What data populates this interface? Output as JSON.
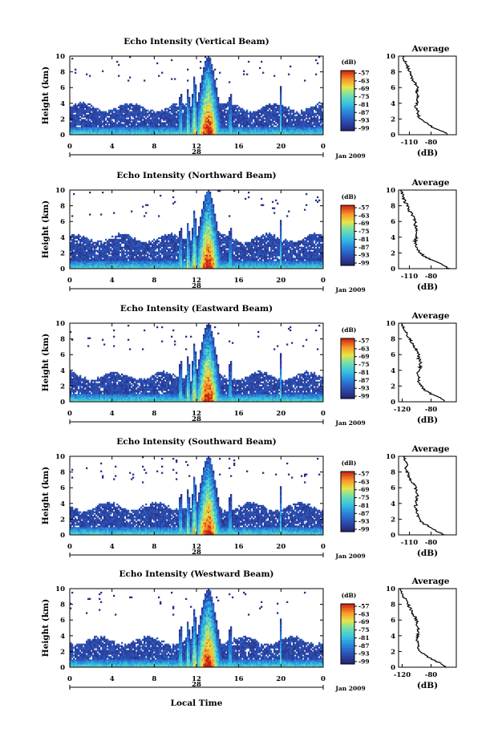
{
  "figure": {
    "colorbar_unit": "(dB)",
    "average_title": "Average",
    "average_xlabel": "(dB)",
    "ylabel": "Height (km)",
    "xlabel": "Local Time",
    "date_label": "Jan 2009",
    "day_label": "28"
  },
  "chart_data": [
    {
      "type": "heatmap",
      "title": "Echo Intensity (Vertical Beam)",
      "ylabel": "Height (km)",
      "xlim": [
        0,
        24
      ],
      "ylim": [
        0,
        10
      ],
      "xticks": [
        "0",
        "4",
        "8",
        "12",
        "16",
        "20",
        "0"
      ],
      "yticks": [
        "0",
        "2",
        "4",
        "6",
        "8",
        "10"
      ],
      "colorbar": {
        "unit": "(dB)",
        "ticks": [
          "-57",
          "-63",
          "-69",
          "-75",
          "-81",
          "-87",
          "-93",
          "-99"
        ]
      },
      "cloud_top_km": 3.5,
      "average": {
        "title": "Average",
        "xlabel": "(dB)",
        "xlim": [
          -125,
          -45
        ],
        "xticks": [
          "-110",
          "-80"
        ],
        "heights": [
          0,
          0.5,
          1,
          1.5,
          2,
          2.5,
          3,
          3.5,
          4,
          4.5,
          5,
          5.5,
          6,
          6.5,
          7,
          7.5,
          8,
          8.5,
          9,
          9.5,
          10
        ],
        "values": [
          -55,
          -67,
          -78,
          -87,
          -95,
          -98,
          -98,
          -101,
          -99,
          -100,
          -98,
          -100,
          -99,
          -102,
          -105,
          -108,
          -110,
          -112,
          -114,
          -117,
          -119
        ]
      }
    },
    {
      "type": "heatmap",
      "title": "Echo Intensity (Northward Beam)",
      "ylabel": "Height (km)",
      "xlim": [
        0,
        24
      ],
      "ylim": [
        0,
        10
      ],
      "xticks": [
        "0",
        "4",
        "8",
        "12",
        "16",
        "20",
        "0"
      ],
      "yticks": [
        "0",
        "2",
        "4",
        "6",
        "8",
        "10"
      ],
      "colorbar": {
        "unit": "(dB)",
        "ticks": [
          "-57",
          "-63",
          "-69",
          "-75",
          "-81",
          "-87",
          "-93",
          "-99"
        ]
      },
      "cloud_top_km": 3.9,
      "average": {
        "title": "Average",
        "xlabel": "(dB)",
        "xlim": [
          -125,
          -45
        ],
        "xticks": [
          "-110",
          "-80"
        ],
        "heights": [
          0,
          0.5,
          1,
          1.5,
          2,
          2.5,
          3,
          3.5,
          4,
          4.5,
          5,
          5.5,
          6,
          6.5,
          7,
          7.5,
          8,
          8.5,
          9,
          9.5,
          10
        ],
        "values": [
          -55,
          -65,
          -77,
          -88,
          -95,
          -99,
          -100,
          -102,
          -100,
          -101,
          -99,
          -102,
          -102,
          -104,
          -107,
          -111,
          -113,
          -116,
          -118,
          -120,
          -121
        ]
      }
    },
    {
      "type": "heatmap",
      "title": "Echo Intensity (Eastward Beam)",
      "ylabel": "Height (km)",
      "xlim": [
        0,
        24
      ],
      "ylim": [
        0,
        10
      ],
      "xticks": [
        "0",
        "4",
        "8",
        "12",
        "16",
        "20",
        "0"
      ],
      "yticks": [
        "0",
        "2",
        "4",
        "6",
        "8",
        "10"
      ],
      "colorbar": {
        "unit": "(dB)",
        "ticks": [
          "-57",
          "-63",
          "-69",
          "-75",
          "-81",
          "-87",
          "-93",
          "-99"
        ]
      },
      "cloud_top_km": 3.3,
      "average": {
        "title": "Average",
        "xlabel": "(dB)",
        "xlim": [
          -125,
          -45
        ],
        "xticks": [
          "-120",
          "-80"
        ],
        "heights": [
          0,
          0.5,
          1,
          1.5,
          2,
          2.5,
          3,
          3.5,
          4,
          4.5,
          5,
          5.5,
          6,
          6.5,
          7,
          7.5,
          8,
          8.5,
          9,
          9.5,
          10
        ],
        "values": [
          -60,
          -68,
          -80,
          -88,
          -94,
          -97,
          -97,
          -99,
          -96,
          -95,
          -94,
          -97,
          -97,
          -99,
          -103,
          -106,
          -110,
          -113,
          -116,
          -118,
          -120
        ]
      }
    },
    {
      "type": "heatmap",
      "title": "Echo Intensity (Southward Beam)",
      "ylabel": "Height (km)",
      "xlim": [
        0,
        24
      ],
      "ylim": [
        0,
        10
      ],
      "xticks": [
        "0",
        "4",
        "8",
        "12",
        "16",
        "20",
        "0"
      ],
      "yticks": [
        "0",
        "2",
        "4",
        "6",
        "8",
        "10"
      ],
      "colorbar": {
        "unit": "(dB)",
        "ticks": [
          "-57",
          "-63",
          "-69",
          "-75",
          "-81",
          "-87",
          "-93",
          "-99"
        ]
      },
      "cloud_top_km": 3.6,
      "average": {
        "title": "Average",
        "xlabel": "(dB)",
        "xlim": [
          -125,
          -45
        ],
        "xticks": [
          "-110",
          "-80"
        ],
        "heights": [
          0,
          0.5,
          1,
          1.5,
          2,
          2.5,
          3,
          3.5,
          4,
          4.5,
          5,
          5.5,
          6,
          6.5,
          7,
          7.5,
          8,
          8.5,
          9,
          9.5,
          10
        ],
        "values": [
          -62,
          -72,
          -82,
          -91,
          -97,
          -99,
          -100,
          -102,
          -100,
          -101,
          -99,
          -101,
          -101,
          -104,
          -108,
          -111,
          -113,
          -115,
          -112,
          -118,
          -116
        ]
      }
    },
    {
      "type": "heatmap",
      "title": "Echo Intensity (Westward Beam)",
      "ylabel": "Height (km)",
      "xlim": [
        0,
        24
      ],
      "ylim": [
        0,
        10
      ],
      "xticks": [
        "0",
        "4",
        "8",
        "12",
        "16",
        "20",
        "0"
      ],
      "yticks": [
        "0",
        "2",
        "4",
        "6",
        "8",
        "10"
      ],
      "colorbar": {
        "unit": "(dB)",
        "ticks": [
          "-57",
          "-63",
          "-69",
          "-75",
          "-81",
          "-87",
          "-93",
          "-99"
        ]
      },
      "cloud_top_km": 3.4,
      "average": {
        "title": "Average",
        "xlabel": "(dB)",
        "xlim": [
          -125,
          -45
        ],
        "xticks": [
          "-120",
          "-80"
        ],
        "heights": [
          0,
          0.5,
          1,
          1.5,
          2,
          2.5,
          3,
          3.5,
          4,
          4.5,
          5,
          5.5,
          6,
          6.5,
          7,
          7.5,
          8,
          8.5,
          9,
          9.5,
          10
        ],
        "values": [
          -58,
          -67,
          -79,
          -88,
          -95,
          -97,
          -98,
          -100,
          -98,
          -99,
          -98,
          -100,
          -100,
          -103,
          -106,
          -109,
          -112,
          -115,
          -118,
          -120,
          -121
        ]
      }
    }
  ]
}
